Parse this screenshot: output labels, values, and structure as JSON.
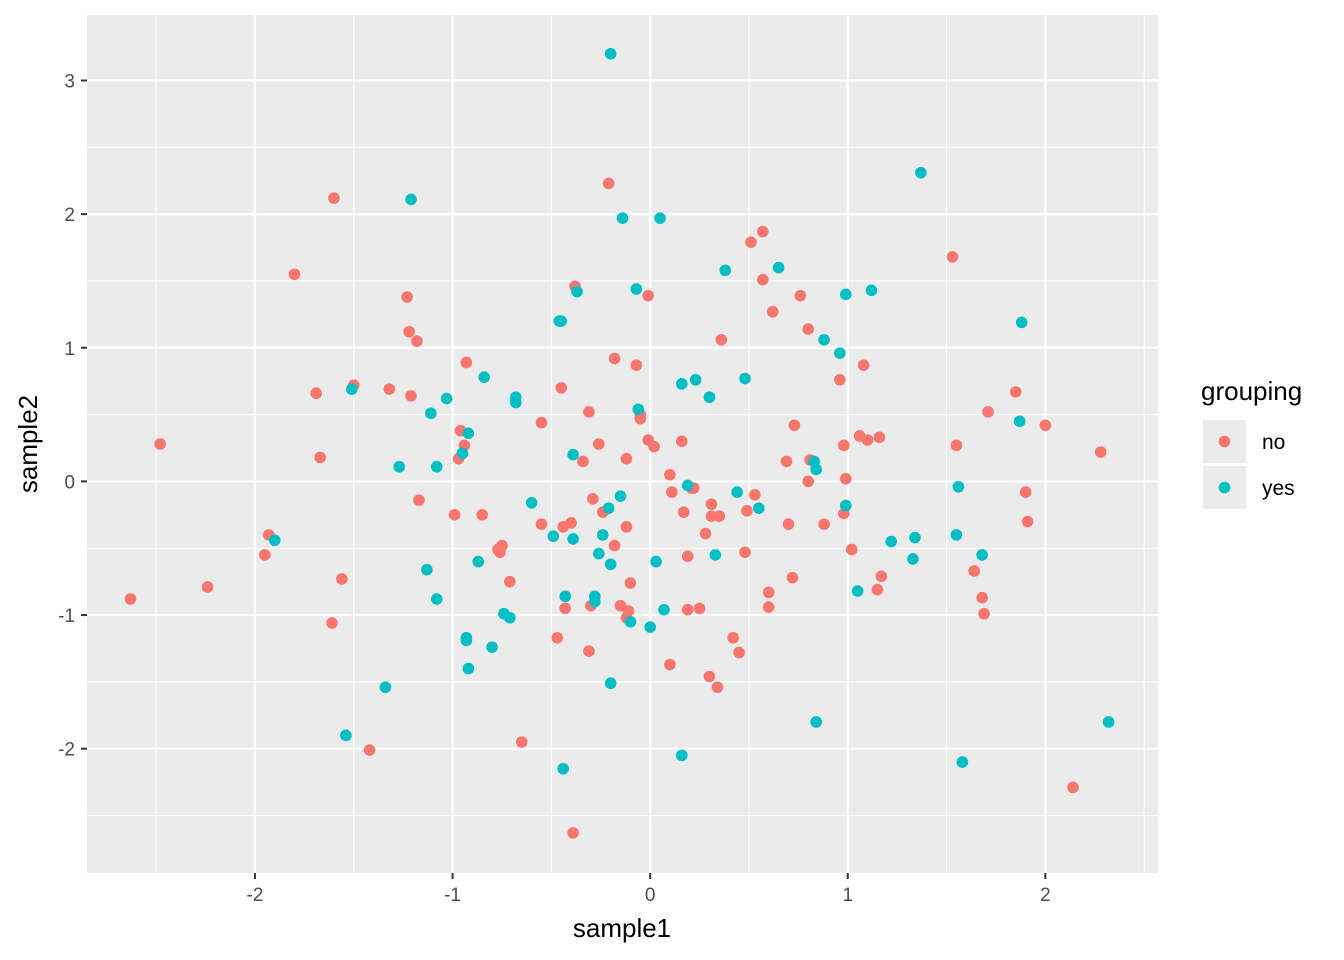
{
  "chart_data": {
    "type": "scatter",
    "xlabel": "sample1",
    "ylabel": "sample2",
    "xlim": [
      -2.85,
      2.57
    ],
    "ylim": [
      -2.93,
      3.49
    ],
    "x_ticks": [
      -2,
      -1,
      0,
      1,
      2
    ],
    "y_ticks": [
      -2,
      -1,
      0,
      1,
      2,
      3
    ],
    "x_tick_labels": [
      "-2",
      "-1",
      "0",
      "1",
      "2"
    ],
    "y_tick_labels": [
      "-2",
      "-1",
      "0",
      "1",
      "2",
      "3"
    ],
    "grid": true,
    "legend": {
      "title": "grouping",
      "placement": "right"
    },
    "background_color": "#ebebeb",
    "series": [
      {
        "name": "no",
        "color": "#f8766d",
        "points": [
          [
            -2.63,
            -0.88
          ],
          [
            -2.48,
            0.28
          ],
          [
            -2.24,
            -0.79
          ],
          [
            -1.95,
            -0.55
          ],
          [
            -1.93,
            -0.4
          ],
          [
            -1.8,
            1.55
          ],
          [
            -1.69,
            0.66
          ],
          [
            -1.67,
            0.18
          ],
          [
            -1.61,
            -1.06
          ],
          [
            -1.6,
            2.12
          ],
          [
            -1.56,
            -0.73
          ],
          [
            -1.5,
            0.72
          ],
          [
            -1.42,
            -2.01
          ],
          [
            -1.32,
            0.69
          ],
          [
            -1.23,
            1.38
          ],
          [
            -1.22,
            1.12
          ],
          [
            -1.21,
            0.64
          ],
          [
            -1.18,
            1.05
          ],
          [
            -1.17,
            -0.14
          ],
          [
            -0.99,
            -0.25
          ],
          [
            -0.97,
            0.17
          ],
          [
            -0.96,
            0.38
          ],
          [
            -0.94,
            0.27
          ],
          [
            -0.93,
            0.89
          ],
          [
            -0.85,
            -0.25
          ],
          [
            -0.77,
            -0.51
          ],
          [
            -0.76,
            -0.53
          ],
          [
            -0.75,
            -0.48
          ],
          [
            -0.71,
            -0.75
          ],
          [
            -0.65,
            -1.95
          ],
          [
            -0.55,
            0.44
          ],
          [
            -0.55,
            -0.32
          ],
          [
            -0.47,
            -1.17
          ],
          [
            -0.45,
            0.7
          ],
          [
            -0.44,
            -0.34
          ],
          [
            -0.43,
            -0.95
          ],
          [
            -0.4,
            -0.31
          ],
          [
            -0.39,
            -2.63
          ],
          [
            -0.38,
            1.46
          ],
          [
            -0.34,
            0.15
          ],
          [
            -0.31,
            0.52
          ],
          [
            -0.31,
            -1.27
          ],
          [
            -0.3,
            -0.93
          ],
          [
            -0.29,
            -0.13
          ],
          [
            -0.26,
            0.28
          ],
          [
            -0.24,
            -0.23
          ],
          [
            -0.21,
            2.23
          ],
          [
            -0.18,
            0.92
          ],
          [
            -0.18,
            -0.48
          ],
          [
            -0.15,
            -0.93
          ],
          [
            -0.12,
            -0.34
          ],
          [
            -0.12,
            0.17
          ],
          [
            -0.12,
            -1.02
          ],
          [
            -0.11,
            -0.97
          ],
          [
            -0.1,
            -0.76
          ],
          [
            -0.07,
            0.87
          ],
          [
            -0.05,
            0.47
          ],
          [
            -0.05,
            0.5
          ],
          [
            -0.01,
            0.31
          ],
          [
            -0.01,
            1.39
          ],
          [
            0.02,
            0.26
          ],
          [
            0.1,
            -1.37
          ],
          [
            0.1,
            0.05
          ],
          [
            0.11,
            -0.08
          ],
          [
            0.16,
            0.3
          ],
          [
            0.17,
            -0.23
          ],
          [
            0.19,
            -0.56
          ],
          [
            0.19,
            -0.96
          ],
          [
            0.21,
            -0.05
          ],
          [
            0.22,
            -0.05
          ],
          [
            0.25,
            -0.95
          ],
          [
            0.28,
            -0.39
          ],
          [
            0.3,
            -1.46
          ],
          [
            0.31,
            -0.17
          ],
          [
            0.31,
            -0.26
          ],
          [
            0.34,
            -1.54
          ],
          [
            0.35,
            -0.26
          ],
          [
            0.36,
            1.06
          ],
          [
            0.42,
            -1.17
          ],
          [
            0.45,
            -1.28
          ],
          [
            0.48,
            -0.53
          ],
          [
            0.49,
            -0.22
          ],
          [
            0.51,
            1.79
          ],
          [
            0.53,
            -0.1
          ],
          [
            0.57,
            1.87
          ],
          [
            0.57,
            1.51
          ],
          [
            0.6,
            -0.83
          ],
          [
            0.6,
            -0.94
          ],
          [
            0.62,
            1.27
          ],
          [
            0.69,
            0.15
          ],
          [
            0.7,
            -0.32
          ],
          [
            0.72,
            -0.72
          ],
          [
            0.73,
            0.42
          ],
          [
            0.76,
            1.39
          ],
          [
            0.8,
            1.14
          ],
          [
            0.8,
            0.0
          ],
          [
            0.81,
            0.16
          ],
          [
            0.88,
            -0.32
          ],
          [
            0.96,
            0.76
          ],
          [
            0.98,
            -0.24
          ],
          [
            0.98,
            0.27
          ],
          [
            0.99,
            0.02
          ],
          [
            1.02,
            -0.51
          ],
          [
            1.06,
            0.34
          ],
          [
            1.08,
            0.87
          ],
          [
            1.1,
            0.31
          ],
          [
            1.15,
            -0.81
          ],
          [
            1.16,
            0.33
          ],
          [
            1.17,
            -0.71
          ],
          [
            1.53,
            1.68
          ],
          [
            1.55,
            0.27
          ],
          [
            1.64,
            -0.67
          ],
          [
            1.68,
            -0.87
          ],
          [
            1.69,
            -0.99
          ],
          [
            1.71,
            0.52
          ],
          [
            1.85,
            0.67
          ],
          [
            1.9,
            -0.08
          ],
          [
            1.91,
            -0.3
          ],
          [
            2.0,
            0.42
          ],
          [
            2.14,
            -2.29
          ],
          [
            2.28,
            0.22
          ]
        ]
      },
      {
        "name": "yes",
        "color": "#00bfc4",
        "points": [
          [
            -1.9,
            -0.44
          ],
          [
            -1.54,
            -1.9
          ],
          [
            -1.51,
            0.69
          ],
          [
            -1.34,
            -1.54
          ],
          [
            -1.27,
            0.11
          ],
          [
            -1.21,
            2.11
          ],
          [
            -1.13,
            -0.66
          ],
          [
            -1.11,
            0.51
          ],
          [
            -1.08,
            -0.88
          ],
          [
            -1.08,
            0.11
          ],
          [
            -1.03,
            0.62
          ],
          [
            -0.95,
            0.21
          ],
          [
            -0.93,
            -1.17
          ],
          [
            -0.93,
            -1.19
          ],
          [
            -0.92,
            0.36
          ],
          [
            -0.92,
            -1.4
          ],
          [
            -0.87,
            -0.6
          ],
          [
            -0.84,
            0.78
          ],
          [
            -0.8,
            -1.24
          ],
          [
            -0.74,
            -0.99
          ],
          [
            -0.71,
            -1.02
          ],
          [
            -0.68,
            0.63
          ],
          [
            -0.68,
            0.59
          ],
          [
            -0.6,
            -0.16
          ],
          [
            -0.49,
            -0.41
          ],
          [
            -0.46,
            1.2
          ],
          [
            -0.45,
            1.2
          ],
          [
            -0.44,
            -2.15
          ],
          [
            -0.43,
            -0.86
          ],
          [
            -0.39,
            0.2
          ],
          [
            -0.39,
            -0.43
          ],
          [
            -0.37,
            1.42
          ],
          [
            -0.28,
            -0.9
          ],
          [
            -0.28,
            -0.86
          ],
          [
            -0.26,
            -0.54
          ],
          [
            -0.24,
            -0.4
          ],
          [
            -0.21,
            -0.2
          ],
          [
            -0.2,
            3.2
          ],
          [
            -0.2,
            -1.51
          ],
          [
            -0.2,
            -0.62
          ],
          [
            -0.15,
            -0.11
          ],
          [
            -0.14,
            1.97
          ],
          [
            -0.1,
            -1.05
          ],
          [
            -0.07,
            1.44
          ],
          [
            -0.06,
            0.54
          ],
          [
            0.0,
            -1.09
          ],
          [
            0.03,
            -0.6
          ],
          [
            0.05,
            1.97
          ],
          [
            0.07,
            -0.96
          ],
          [
            0.16,
            0.73
          ],
          [
            0.16,
            -2.05
          ],
          [
            0.19,
            -0.03
          ],
          [
            0.23,
            0.76
          ],
          [
            0.3,
            0.63
          ],
          [
            0.33,
            -0.55
          ],
          [
            0.38,
            1.58
          ],
          [
            0.44,
            -0.08
          ],
          [
            0.48,
            0.77
          ],
          [
            0.55,
            -0.2
          ],
          [
            0.65,
            1.6
          ],
          [
            0.83,
            0.15
          ],
          [
            0.84,
            -1.8
          ],
          [
            0.84,
            0.09
          ],
          [
            0.88,
            1.06
          ],
          [
            0.96,
            0.96
          ],
          [
            0.99,
            1.4
          ],
          [
            0.99,
            -0.18
          ],
          [
            1.05,
            -0.82
          ],
          [
            1.12,
            1.43
          ],
          [
            1.22,
            -0.45
          ],
          [
            1.33,
            -0.58
          ],
          [
            1.34,
            -0.42
          ],
          [
            1.37,
            2.31
          ],
          [
            1.55,
            -0.4
          ],
          [
            1.56,
            -0.04
          ],
          [
            1.58,
            -2.1
          ],
          [
            1.68,
            -0.55
          ],
          [
            1.87,
            0.45
          ],
          [
            1.88,
            1.19
          ],
          [
            2.32,
            -1.8
          ]
        ]
      }
    ]
  }
}
